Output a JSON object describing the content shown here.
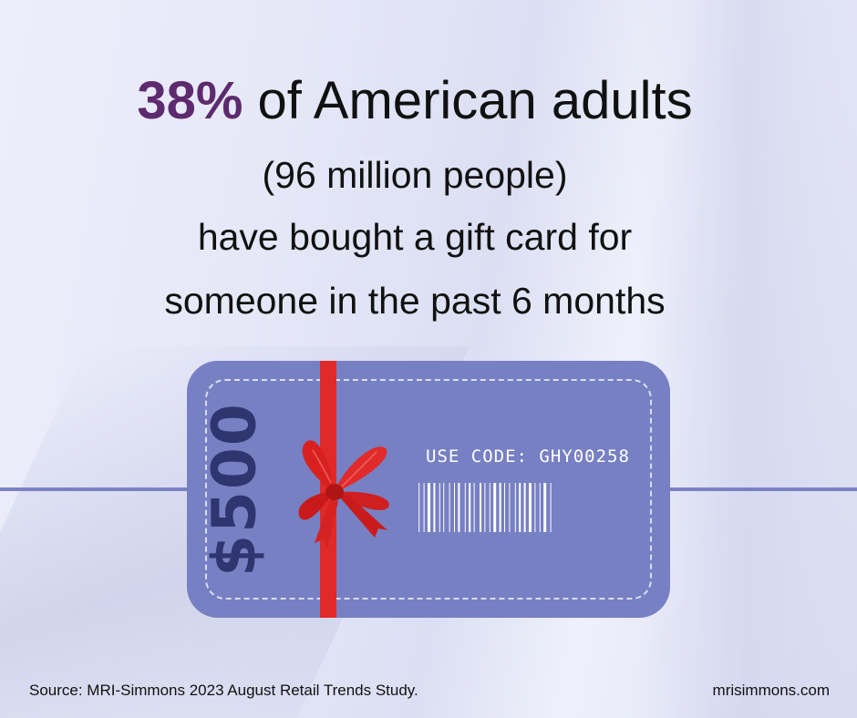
{
  "headline": {
    "percent": "38%",
    "text": " of American adults"
  },
  "sublines": [
    "(96 million people)",
    "have bought a gift card for",
    "someone in the past 6 months"
  ],
  "gift_card": {
    "amount": "$500",
    "code_label": "USE CODE: GHY00258",
    "colors": {
      "card": "#7780c2",
      "amount_text": "#2e356f",
      "ribbon": "#e02a2a",
      "accent_purple": "#5e2a6e"
    }
  },
  "footer": {
    "source": "Source:  MRI-Simmons 2023 August Retail Trends Study.",
    "site": "mrisimmons.com"
  }
}
